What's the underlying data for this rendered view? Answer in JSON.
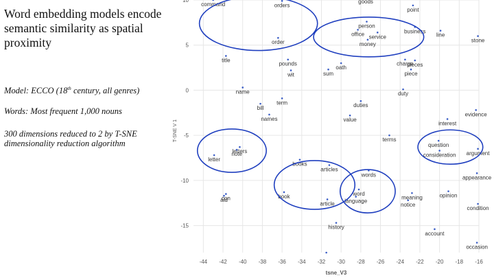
{
  "slide": {
    "title": "Word embedding models encode semantic similarity as spatial proximity",
    "model_label": "Model: ECCO (18",
    "model_sup": "th",
    "model_rest": " century, all genres)",
    "words_note": "Words: Most frequent 1,000 nouns",
    "dims_note": "300 dimensions reduced to 2 by T-SNE dimensionality reduction algorithm"
  },
  "colors": {
    "point": "#3b5ec6",
    "ellipse": "#1f3fbf",
    "grid": "#e6e6e6",
    "label": "#333333",
    "axis": "#555555"
  },
  "chart_data": {
    "type": "scatter",
    "xlabel": "tsne_V3",
    "ylabel": "T-SNE V 1",
    "xlim": [
      -45,
      -16
    ],
    "ylim": [
      -18,
      10
    ],
    "xticks": [
      -44,
      -42,
      -40,
      -38,
      -36,
      -34,
      -32,
      -30,
      -28,
      -26,
      -24,
      -22,
      -20,
      -18,
      -16
    ],
    "yticks": [
      10,
      5,
      0,
      -5,
      -10,
      -15
    ],
    "points": [
      {
        "label": "command",
        "x": -43,
        "y": 10.0
      },
      {
        "label": "orders",
        "x": -36,
        "y": 9.9
      },
      {
        "label": "goods",
        "x": -27.5,
        "y": 10.3
      },
      {
        "label": "point",
        "x": -22.7,
        "y": 9.4
      },
      {
        "label": "person",
        "x": -27.4,
        "y": 7.6
      },
      {
        "label": "business",
        "x": -22.5,
        "y": 7.0
      },
      {
        "label": "office",
        "x": -28.3,
        "y": 6.7
      },
      {
        "label": "service",
        "x": -26.3,
        "y": 6.4
      },
      {
        "label": "line",
        "x": -19.9,
        "y": 6.6
      },
      {
        "label": "stone",
        "x": -16.1,
        "y": 6.0
      },
      {
        "label": "money",
        "x": -27.3,
        "y": 5.6
      },
      {
        "label": "order",
        "x": -36.4,
        "y": 5.8
      },
      {
        "label": "title",
        "x": -41.7,
        "y": 3.8
      },
      {
        "label": "pounds",
        "x": -35.4,
        "y": 3.4
      },
      {
        "label": "oath",
        "x": -30.0,
        "y": 3.0
      },
      {
        "label": "charge",
        "x": -23.5,
        "y": 3.4
      },
      {
        "label": "pieces",
        "x": -22.5,
        "y": 3.3
      },
      {
        "label": "wit",
        "x": -35.1,
        "y": 2.2
      },
      {
        "label": "sum",
        "x": -31.3,
        "y": 2.3
      },
      {
        "label": "piece",
        "x": -22.9,
        "y": 2.3
      },
      {
        "label": "name",
        "x": -40.0,
        "y": 0.3
      },
      {
        "label": "duty",
        "x": -23.7,
        "y": 0.1
      },
      {
        "label": "term",
        "x": -36.0,
        "y": -0.9
      },
      {
        "label": "bill",
        "x": -38.2,
        "y": -1.5
      },
      {
        "label": "duties",
        "x": -28.0,
        "y": -1.2
      },
      {
        "label": "evidence",
        "x": -16.3,
        "y": -2.2
      },
      {
        "label": "names",
        "x": -37.3,
        "y": -2.7
      },
      {
        "label": "value",
        "x": -29.1,
        "y": -2.8
      },
      {
        "label": "interest",
        "x": -19.2,
        "y": -3.2
      },
      {
        "label": "terms",
        "x": -25.1,
        "y": -5.0
      },
      {
        "label": "question",
        "x": -20.1,
        "y": -5.6
      },
      {
        "label": "letters",
        "x": -40.3,
        "y": -6.3
      },
      {
        "label": "note",
        "x": -40.6,
        "y": -6.6
      },
      {
        "label": "argument",
        "x": -16.1,
        "y": -6.5
      },
      {
        "label": "consideration",
        "x": -20.0,
        "y": -6.7
      },
      {
        "label": "letter",
        "x": -42.9,
        "y": -7.2
      },
      {
        "label": "books",
        "x": -34.2,
        "y": -7.7
      },
      {
        "label": "articles",
        "x": -31.2,
        "y": -8.3
      },
      {
        "label": "words",
        "x": -27.2,
        "y": -8.9
      },
      {
        "label": "appearance",
        "x": -16.2,
        "y": -9.2
      },
      {
        "label": "word",
        "x": -28.2,
        "y": -11.0
      },
      {
        "label": "opinion",
        "x": -19.1,
        "y": -11.2
      },
      {
        "label": "meaning",
        "x": -22.8,
        "y": -11.4
      },
      {
        "label": "con",
        "x": -41.7,
        "y": -11.5
      },
      {
        "label": "aid",
        "x": -41.9,
        "y": -11.7
      },
      {
        "label": "book",
        "x": -35.8,
        "y": -11.3
      },
      {
        "label": "language",
        "x": -28.5,
        "y": -11.8
      },
      {
        "label": "article",
        "x": -31.4,
        "y": -12.1
      },
      {
        "label": "notice",
        "x": -23.2,
        "y": -12.2
      },
      {
        "label": "condition",
        "x": -16.1,
        "y": -12.6
      },
      {
        "label": "history",
        "x": -30.5,
        "y": -14.7
      },
      {
        "label": "account",
        "x": -20.5,
        "y": -15.4
      },
      {
        "label": "occasion",
        "x": -16.2,
        "y": -16.9
      },
      {
        "label": "",
        "x": -31.5,
        "y": -18.0
      }
    ],
    "clusters": [
      {
        "cx": -38.4,
        "cy": 7.4,
        "rx": 6.0,
        "ry": 3.0
      },
      {
        "cx": -27.2,
        "cy": 5.9,
        "rx": 5.6,
        "ry": 2.2
      },
      {
        "cx": -41.1,
        "cy": -6.7,
        "rx": 3.5,
        "ry": 2.4
      },
      {
        "cx": -32.7,
        "cy": -10.5,
        "rx": 4.1,
        "ry": 2.7
      },
      {
        "cx": -27.3,
        "cy": -11.2,
        "rx": 2.8,
        "ry": 2.4
      },
      {
        "cx": -18.9,
        "cy": -6.3,
        "rx": 3.3,
        "ry": 1.9
      }
    ]
  }
}
